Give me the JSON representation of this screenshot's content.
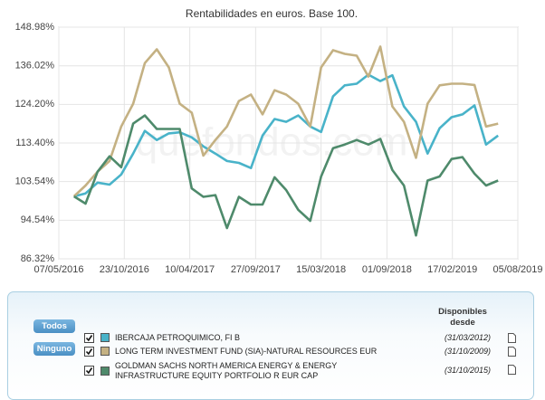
{
  "chart_data": {
    "type": "line",
    "title": "Rentabilidades en euros. Base 100.",
    "watermark": "quefondos.com",
    "x": [
      "15/06/2016",
      "15/07/2016",
      "15/08/2016",
      "15/09/2016",
      "15/10/2016",
      "15/11/2016",
      "15/12/2016",
      "15/01/2017",
      "15/02/2017",
      "15/03/2017",
      "15/04/2017",
      "15/05/2017",
      "15/06/2017",
      "15/07/2017",
      "15/08/2017",
      "15/09/2017",
      "15/10/2017",
      "15/11/2017",
      "15/12/2017",
      "15/01/2018",
      "15/02/2018",
      "15/03/2018",
      "15/04/2018",
      "15/05/2018",
      "15/06/2018",
      "15/07/2018",
      "15/08/2018",
      "15/09/2018",
      "15/10/2018",
      "15/11/2018",
      "15/12/2018",
      "15/01/2019",
      "15/02/2019",
      "15/03/2019",
      "15/04/2019",
      "15/05/2019",
      "15/06/2019"
    ],
    "series": [
      {
        "name": "IBERCAJA PETROQUIMICO, FI B",
        "color": "#49b3c9",
        "values": [
          100,
          100.7,
          103.3,
          102.8,
          105.3,
          110.6,
          116.7,
          114.2,
          116,
          116.3,
          114.9,
          112.5,
          110.6,
          108.7,
          108.2,
          106.9,
          115.4,
          120,
          119.2,
          121,
          117.9,
          116.4,
          126.6,
          129.9,
          130.4,
          133.2,
          131.2,
          133,
          123.6,
          119.2,
          110.6,
          117.4,
          120.5,
          121.3,
          123.9,
          113,
          115.4
        ]
      },
      {
        "name": "LONG TERM INVESTMENT FUND (SIA)-NATURAL RESOURCES EUR",
        "color": "#c4b183",
        "values": [
          100,
          102.6,
          106,
          108.7,
          117.9,
          124.4,
          136.9,
          141.4,
          135.5,
          124.4,
          121.8,
          110.1,
          114.2,
          117.9,
          125.2,
          127.1,
          121.3,
          128.4,
          127.1,
          124.4,
          117.9,
          135.5,
          141.1,
          139.9,
          139.3,
          132.6,
          142.3,
          123.6,
          119.2,
          109.5,
          124.4,
          129.9,
          130.4,
          130.4,
          130,
          117.9,
          118.7
        ]
      },
      {
        "name": "GOLDMAN SACHS NORTH AMERICA ENERGY & ENERGY INFRASTRUCTURE EQUITY PORTFOLIO R EUR CAP",
        "color": "#4e8a6b",
        "values": [
          100,
          98.3,
          106,
          109.9,
          107.1,
          118.7,
          121,
          117.2,
          117.2,
          117.2,
          101.9,
          99.9,
          100.3,
          92.8,
          99.9,
          98.1,
          98.1,
          104.6,
          101.5,
          96.9,
          94.4,
          104.8,
          112,
          113,
          114.2,
          113,
          114.5,
          106.4,
          102.6,
          91.2,
          103.8,
          104.8,
          109.2,
          109.7,
          105.5,
          102.6,
          103.8
        ]
      }
    ],
    "xlim": [
      "07/05/2016",
      "05/08/2019"
    ],
    "xticks": [
      "07/05/2016",
      "23/10/2016",
      "10/04/2017",
      "27/09/2017",
      "15/03/2018",
      "01/09/2018",
      "17/02/2019",
      "05/08/2019"
    ],
    "ylim": [
      86.32,
      148.98
    ],
    "yticks": [
      {
        "value": 86.32,
        "label": "86.32%"
      },
      {
        "value": 94.54,
        "label": "94.54%"
      },
      {
        "value": 103.54,
        "label": "103.54%"
      },
      {
        "value": 113.4,
        "label": "113.40%"
      },
      {
        "value": 124.2,
        "label": "124.20%"
      },
      {
        "value": 136.02,
        "label": "136.02%"
      },
      {
        "value": 148.98,
        "label": "148.98%"
      }
    ],
    "log_scale": true,
    "grid": true
  },
  "panel": {
    "buttons": [
      "Todos",
      "Ninguno"
    ],
    "header": "Disponibles desde",
    "since": [
      "(31/03/2012)",
      "(31/10/2009)",
      "(31/10/2015)"
    ]
  }
}
